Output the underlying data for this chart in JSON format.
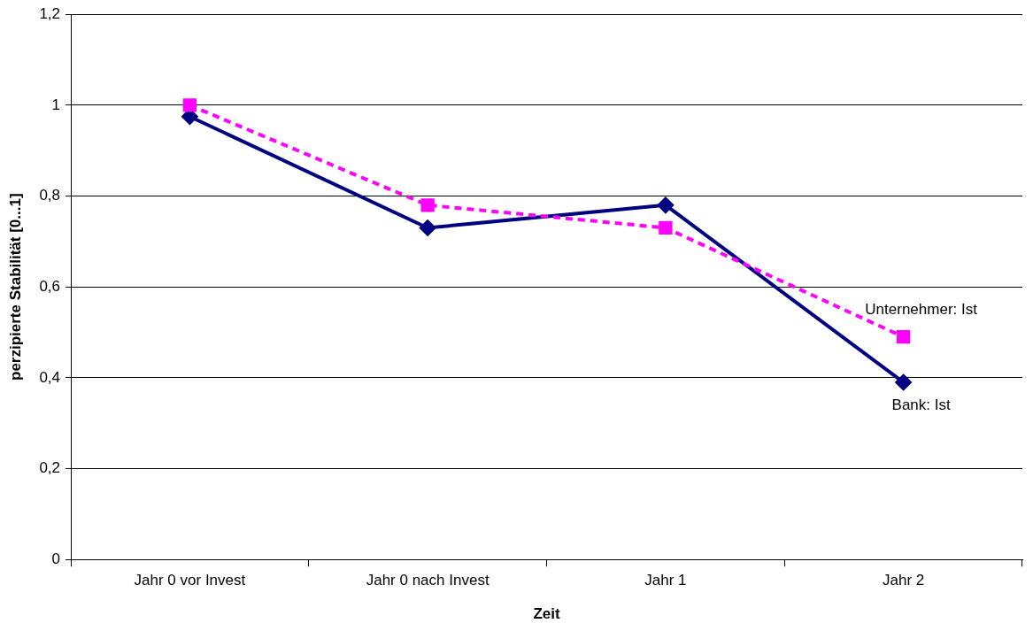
{
  "chart_data": {
    "type": "line",
    "xlabel": "Zeit",
    "ylabel": "perzipierte Stabilität [0...1]",
    "categories": [
      "Jahr 0 vor Invest",
      "Jahr 0 nach Invest",
      "Jahr 1",
      "Jahr 2"
    ],
    "series": [
      {
        "name": "Unternehmer: Ist",
        "color": "#ff00ff",
        "values": [
          1.0,
          0.78,
          0.73,
          0.49
        ],
        "marker": "square",
        "line_style": "dashed"
      },
      {
        "name": "Bank: Ist",
        "color": "#000080",
        "values": [
          0.975,
          0.73,
          0.78,
          0.39
        ],
        "marker": "diamond",
        "line_style": "solid"
      }
    ],
    "ylim": [
      0,
      1.2
    ],
    "yticks": [
      0,
      {
        "value": 0.2,
        "label": "0,2"
      },
      {
        "value": 0.4,
        "label": "0,4"
      },
      {
        "value": 0.6,
        "label": "0,6"
      },
      {
        "value": 0.8,
        "label": "0,8"
      },
      1,
      {
        "value": 1.2,
        "label": "1,2"
      }
    ],
    "grid": "y"
  }
}
